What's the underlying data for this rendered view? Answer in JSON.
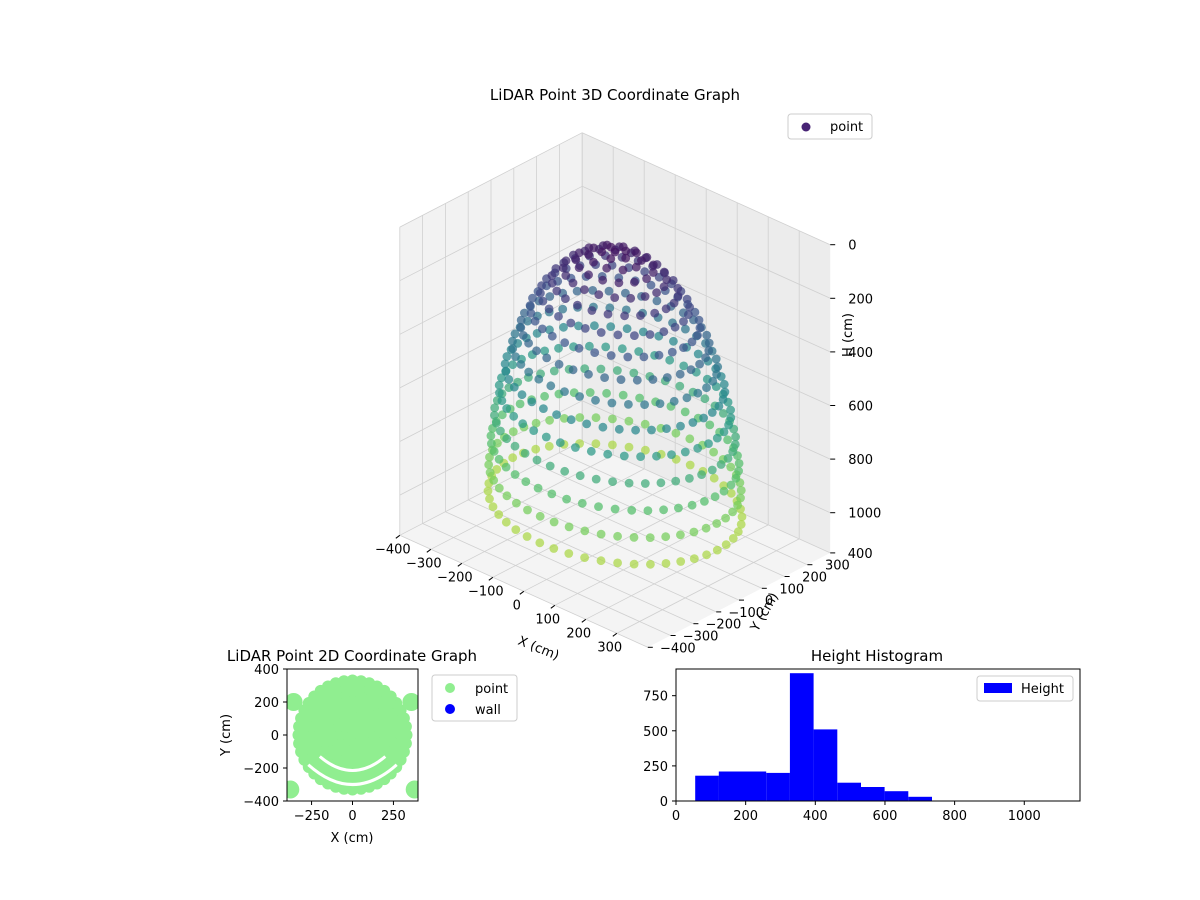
{
  "chart_data": [
    {
      "type": "scatter3d",
      "title": "LiDAR Point 3D Coordinate Graph",
      "xlabel": "X (cm)",
      "ylabel": "Y (cm)",
      "zlabel": "H (cm)",
      "xlim": [
        -400,
        400
      ],
      "ylim": [
        -400,
        400
      ],
      "zlim": [
        1150,
        0
      ],
      "z_axis_inverted": true,
      "x_ticks": [
        -400,
        -300,
        -200,
        -100,
        0,
        100,
        200,
        300
      ],
      "y_ticks": [
        -400,
        -300,
        -200,
        -100,
        0,
        100,
        200,
        300,
        400
      ],
      "z_ticks": [
        0,
        200,
        400,
        600,
        800,
        1000
      ],
      "x_tick_labels": [
        "−400",
        "−300",
        "−200",
        "−100",
        "0",
        "100",
        "200",
        "300"
      ],
      "y_tick_labels": [
        "−400",
        "−300",
        "−200",
        "−100",
        "0",
        "100",
        "200",
        "300",
        "400"
      ],
      "z_tick_labels": [
        "0",
        "200",
        "400",
        "600",
        "800",
        "1000"
      ],
      "colormap": "viridis",
      "grid": true,
      "legend": {
        "position": "top-right",
        "entries": [
          {
            "label": "point",
            "color": "#482475"
          }
        ]
      },
      "series": [
        {
          "name": "point",
          "shape": "dome of points",
          "radius_range": [
            0,
            330
          ],
          "height_range": [
            60,
            1000
          ]
        }
      ]
    },
    {
      "type": "scatter",
      "title": "LiDAR Point 2D Coordinate Graph",
      "xlabel": "X (cm)",
      "ylabel": "Y (cm)",
      "xlim": [
        -400,
        400
      ],
      "ylim": [
        -400,
        400
      ],
      "x_ticks": [
        -250,
        0,
        250
      ],
      "y_ticks": [
        -400,
        -200,
        0,
        200,
        400
      ],
      "x_tick_labels": [
        "−250",
        "0",
        "250"
      ],
      "y_tick_labels": [
        "−400",
        "−200",
        "0",
        "200",
        "400"
      ],
      "legend": {
        "position": "outside-right",
        "entries": [
          {
            "label": "point",
            "color": "#90ee90"
          },
          {
            "label": "wall",
            "color": "#0000ff"
          }
        ]
      },
      "series": [
        {
          "name": "point",
          "color": "#90ee90",
          "shape": "filled disc",
          "radius": 330
        },
        {
          "name": "wall",
          "color": "#0000ff"
        }
      ]
    },
    {
      "type": "histogram",
      "title": "Height Histogram",
      "xlabel": "",
      "ylabel": "",
      "xlim": [
        0,
        1160
      ],
      "ylim": [
        0,
        940
      ],
      "x_ticks": [
        0,
        200,
        400,
        600,
        800,
        1000
      ],
      "y_ticks": [
        0,
        250,
        500,
        750
      ],
      "bar_color": "#0000ff",
      "legend": {
        "position": "top-right",
        "entries": [
          {
            "label": "Height",
            "color": "#0000ff"
          }
        ]
      },
      "bins": [
        {
          "start": 55,
          "end": 123,
          "count": 180
        },
        {
          "start": 123,
          "end": 191,
          "count": 210
        },
        {
          "start": 191,
          "end": 259,
          "count": 210
        },
        {
          "start": 259,
          "end": 327,
          "count": 200
        },
        {
          "start": 327,
          "end": 395,
          "count": 910
        },
        {
          "start": 395,
          "end": 463,
          "count": 510
        },
        {
          "start": 463,
          "end": 531,
          "count": 130
        },
        {
          "start": 531,
          "end": 599,
          "count": 100
        },
        {
          "start": 599,
          "end": 667,
          "count": 70
        },
        {
          "start": 667,
          "end": 735,
          "count": 30
        },
        {
          "start": 735,
          "end": 803,
          "count": 2
        },
        {
          "start": 803,
          "end": 871,
          "count": 1
        },
        {
          "start": 871,
          "end": 939,
          "count": 1
        },
        {
          "start": 939,
          "end": 1007,
          "count": 1
        },
        {
          "start": 1007,
          "end": 1075,
          "count": 1
        },
        {
          "start": 1075,
          "end": 1143,
          "count": 1
        }
      ]
    }
  ]
}
